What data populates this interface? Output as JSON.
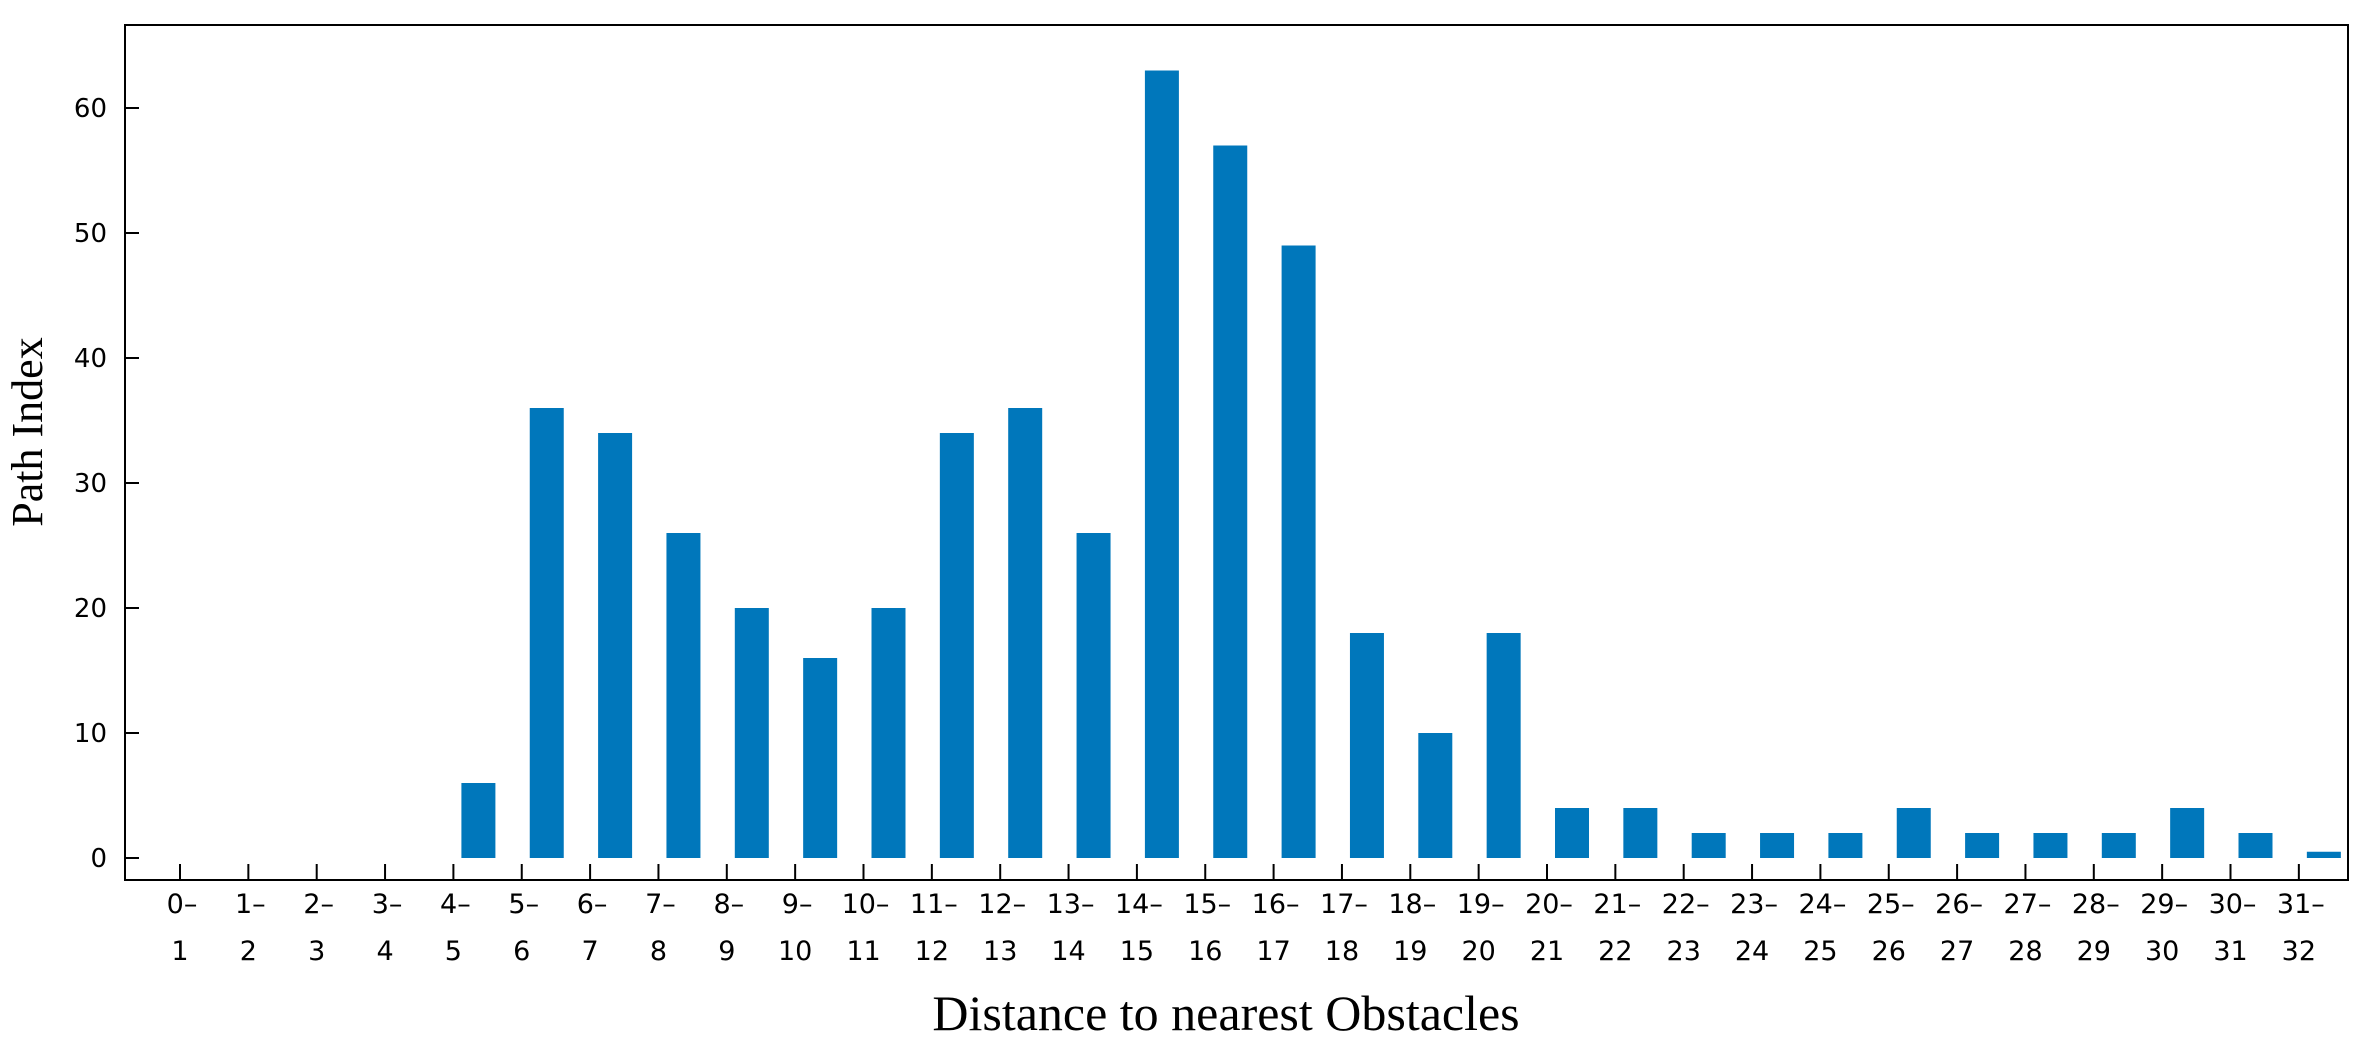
{
  "chart_data": {
    "type": "bar",
    "title": "",
    "xlabel": "Distance to nearest Obstacles",
    "ylabel": "Path Index",
    "ylim": [
      -2,
      66
    ],
    "yticks": [
      0,
      10,
      20,
      30,
      40,
      50,
      60
    ],
    "grid": false,
    "bar_color": "#0077bb",
    "categories": [
      [
        "0–",
        "1"
      ],
      [
        "1–",
        "2"
      ],
      [
        "2–",
        "3"
      ],
      [
        "3–",
        "4"
      ],
      [
        "4–",
        "5"
      ],
      [
        "5–",
        "6"
      ],
      [
        "6–",
        "7"
      ],
      [
        "7–",
        "8"
      ],
      [
        "8–",
        "9"
      ],
      [
        "9–",
        "10"
      ],
      [
        "10–",
        "11"
      ],
      [
        "11–",
        "12"
      ],
      [
        "12–",
        "13"
      ],
      [
        "13–",
        "14"
      ],
      [
        "14–",
        "15"
      ],
      [
        "15–",
        "16"
      ],
      [
        "16–",
        "17"
      ],
      [
        "17–",
        "18"
      ],
      [
        "18–",
        "19"
      ],
      [
        "19–",
        "20"
      ],
      [
        "20–",
        "21"
      ],
      [
        "21–",
        "22"
      ],
      [
        "22–",
        "23"
      ],
      [
        "23–",
        "24"
      ],
      [
        "24–",
        "25"
      ],
      [
        "25–",
        "26"
      ],
      [
        "26–",
        "27"
      ],
      [
        "27–",
        "28"
      ],
      [
        "28–",
        "29"
      ],
      [
        "29–",
        "30"
      ],
      [
        "30–",
        "31"
      ],
      [
        "31–",
        "32"
      ]
    ],
    "values": [
      0,
      0,
      0,
      0,
      6,
      36,
      34,
      26,
      20,
      16,
      20,
      34,
      36,
      26,
      63,
      57,
      49,
      18,
      10,
      18,
      4,
      4,
      2,
      2,
      2,
      4,
      2,
      2,
      2,
      4,
      2,
      0.5
    ]
  }
}
